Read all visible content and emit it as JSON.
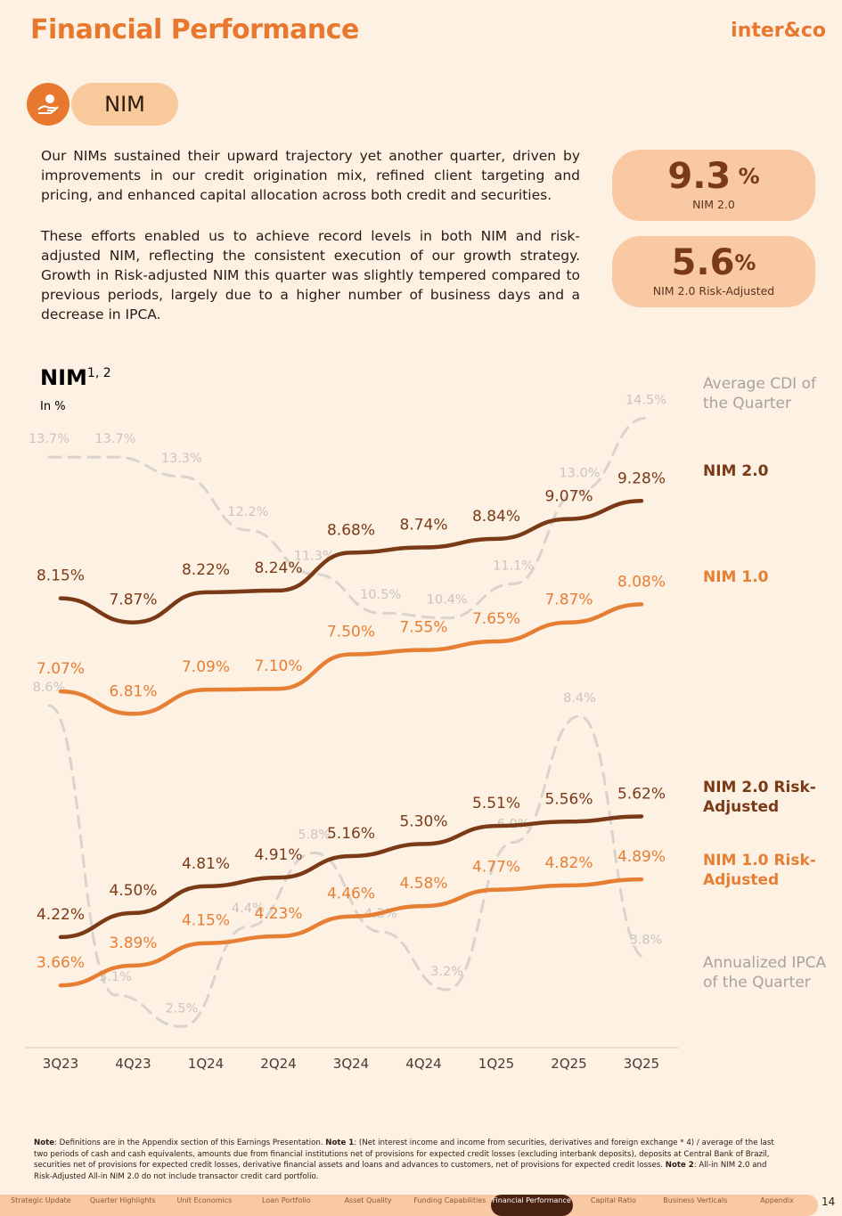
{
  "header": {
    "title": "Financial Performance",
    "logo": "inter&co"
  },
  "section": {
    "label": "NIM"
  },
  "paragraphs": [
    "Our NIMs sustained their upward trajectory yet another quarter, driven by improvements in our credit origination mix, refined client targeting and pricing, and enhanced capital allocation across both credit and securities.",
    "These efforts enabled us to achieve record levels in both NIM and risk-adjusted NIM, reflecting the consistent execution of our growth strategy. Growth in Risk-adjusted NIM this quarter was slightly tempered compared to previous periods, largely due to a higher number of business days and a decrease in IPCA."
  ],
  "kpis": [
    {
      "value": "9.3",
      "unit": " %",
      "label": "NIM 2.0"
    },
    {
      "value": "5.6",
      "unit": "%",
      "label": "NIM 2.0 Risk-Adjusted"
    }
  ],
  "chart_data": [
    {
      "type": "line",
      "title": "NIM",
      "title_note": "1, 2",
      "subtitle": "In %",
      "categories": [
        "3Q23",
        "4Q23",
        "1Q24",
        "2Q24",
        "3Q24",
        "4Q24",
        "1Q25",
        "2Q25",
        "3Q25"
      ],
      "ylim": [
        3,
        10.75
      ],
      "series": [
        {
          "name": "NIM 2.0",
          "color": "#7a3a16",
          "values": [
            8.15,
            7.87,
            8.22,
            8.24,
            8.68,
            8.74,
            8.84,
            9.07,
            9.28
          ],
          "value_labels": [
            "8.15%",
            "7.87%",
            "8.22%",
            "8.24%",
            "8.68%",
            "8.74%",
            "8.84%",
            "9.07%",
            "9.28%"
          ]
        },
        {
          "name": "NIM 1.0",
          "color": "#e67e33",
          "values": [
            7.07,
            6.81,
            7.09,
            7.1,
            7.5,
            7.55,
            7.65,
            7.87,
            8.08
          ],
          "value_labels": [
            "7.07%",
            "6.81%",
            "7.09%",
            "7.10%",
            "7.50%",
            "7.55%",
            "7.65%",
            "7.87%",
            "8.08%"
          ]
        },
        {
          "name": "NIM 2.0 Risk-Adjusted",
          "color": "#7a3a16",
          "values": [
            4.22,
            4.5,
            4.81,
            4.91,
            5.16,
            5.3,
            5.51,
            5.56,
            5.62
          ],
          "value_labels": [
            "4.22%",
            "4.50%",
            "4.81%",
            "4.91%",
            "5.16%",
            "5.30%",
            "5.51%",
            "5.56%",
            "5.62%"
          ]
        },
        {
          "name": "NIM 1.0 Risk-Adjusted",
          "color": "#e67e33",
          "values": [
            3.66,
            3.89,
            4.15,
            4.23,
            4.46,
            4.58,
            4.77,
            4.82,
            4.89
          ],
          "value_labels": [
            "3.66%",
            "3.89%",
            "4.15%",
            "4.23%",
            "4.46%",
            "4.58%",
            "4.77%",
            "4.82%",
            "4.89%"
          ]
        }
      ]
    },
    {
      "type": "line",
      "dashed": true,
      "series": [
        {
          "name": "Average CDI of the Quarter",
          "color": "#d9d3cc",
          "ylim": [
            1.7,
            15.4
          ],
          "values": [
            13.7,
            13.7,
            13.3,
            12.2,
            11.3,
            10.5,
            10.4,
            11.1,
            13.0,
            14.5
          ],
          "value_labels": [
            "13.7%",
            "13.7%",
            "13.3%",
            "12.2%",
            "11.3%",
            "10.5%",
            "10.4%",
            "11.1%",
            "13.0%",
            "14.5%"
          ]
        },
        {
          "name": "Annualized IPCA of the Quarter",
          "color": "#d9d3cc",
          "ylim": [
            2.2,
            14.9
          ],
          "values": [
            8.6,
            3.1,
            2.5,
            4.4,
            5.8,
            4.3,
            3.2,
            6.0,
            8.4,
            3.8
          ],
          "value_labels": [
            "8.6%",
            "3.1%",
            "2.5%",
            "4.4%",
            "5.8%",
            "4.3%",
            "3.2%",
            "6.0%",
            "8.4%",
            "3.8%"
          ]
        }
      ]
    }
  ],
  "footnote": [
    {
      "text": "Note",
      "bold": true
    },
    {
      "text": ": Definitions are in the Appendix section of this Earnings Presentation. "
    },
    {
      "text": "Note 1",
      "bold": true
    },
    {
      "text": ": (Net interest income and income from securities, derivatives and foreign exchange * 4) / average of the last two periods of cash and cash equivalents, amounts due from financial institutions net of provisions for expected credit losses (excluding interbank deposits), deposits at Central Bank of Brazil, securities net of provisions for expected credit losses, derivative financial assets and loans and advances to customers, net of provisions for expected credit losses. "
    },
    {
      "text": "Note 2",
      "bold": true
    },
    {
      "text": ": All-in NIM 2.0 and Risk-Adjusted All-in NIM 2.0 do not include transactor credit card portfolio."
    }
  ],
  "nav": {
    "items": [
      "Strategic Update",
      "Quarter Highlights",
      "Unit Economics",
      "Loan Portfolio",
      "Asset Quality",
      "Funding Capabilities",
      "Financial Performance",
      "Capital Ratio",
      "Business Verticals",
      "Appendix"
    ],
    "active": 6,
    "page": "14"
  }
}
